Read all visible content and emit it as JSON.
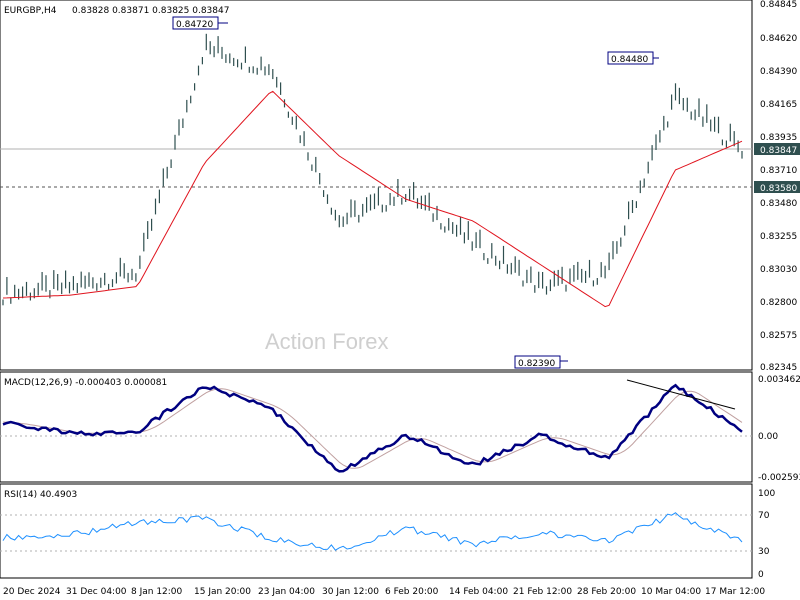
{
  "header": {
    "symbol": "EURGBP,H4",
    "ohlc": "0.83828 0.83871 0.83825 0.83847"
  },
  "watermark": "Action Forex",
  "price_axis": {
    "ticks": [
      "0.84845",
      "0.84620",
      "0.84390",
      "0.84165",
      "0.83935",
      "0.83710",
      "0.83480",
      "0.83255",
      "0.83030",
      "0.82800",
      "0.82575",
      "0.82345"
    ],
    "current_label": "0.83847",
    "hline_label": "0.83580"
  },
  "annotations": {
    "high1": "0.84720",
    "high2": "0.84480",
    "low1": "0.82390"
  },
  "macd": {
    "header": "MACD(12,26,9) -0.000403 0.000081",
    "ticks": [
      "0.003462",
      "0.00",
      "-0.002593"
    ]
  },
  "rsi": {
    "header": "RSI(14) 40.4903",
    "ticks": [
      "100",
      "70",
      "30",
      "0"
    ]
  },
  "time_axis": {
    "labels": [
      "20 Dec 2024",
      "31 Dec 04:00",
      "8 Jan 12:00",
      "15 Jan 20:00",
      "23 Jan 04:00",
      "30 Jan 12:00",
      "6 Feb 20:00",
      "14 Feb 04:00",
      "21 Feb 12:00",
      "28 Feb 20:00",
      "10 Mar 04:00",
      "17 Mar 12:00"
    ]
  },
  "colors": {
    "bars": "#2f4f4f",
    "ma": "#e0141e",
    "macd_main": "#000080",
    "macd_signal": "#c0a0a0",
    "rsi": "#1e90ff",
    "grid": "#999999"
  },
  "chart_data": [
    {
      "type": "line",
      "title": "EURGBP,H4",
      "series": [
        {
          "name": "EURGBP,H4",
          "x": [
            "20 Dec 2024",
            "31 Dec 04:00",
            "8 Jan 12:00",
            "15 Jan 20:00",
            "23 Jan 04:00",
            "30 Jan 12:00",
            "6 Feb 20:00",
            "14 Feb 04:00",
            "21 Feb 12:00",
            "28 Feb 20:00",
            "10 Mar 04:00",
            "17 Mar 12:00"
          ],
          "values": [
            0.8285,
            0.829,
            0.83,
            0.8455,
            0.844,
            0.8335,
            0.8355,
            0.832,
            0.829,
            0.83,
            0.842,
            0.8385
          ]
        },
        {
          "x": [
            "20 Dec 2024",
            "31 Dec 04:00",
            "8 Jan 12:00",
            "15 Jan 20:00",
            "23 Jan 04:00",
            "30 Jan 12:00",
            "6 Feb 20:00",
            "14 Feb 04:00",
            "21 Feb 12:00",
            "28 Feb 20:00",
            "10 Mar 04:00",
            "17 Mar 12:00"
          ],
          "values": [
            0.8282,
            0.8284,
            0.829,
            0.8375,
            0.8425,
            0.838,
            0.835,
            0.8335,
            0.8305,
            0.8275,
            0.837,
            0.839
          ]
        }
      ],
      "xlabel": "",
      "ylabel": "",
      "ylim": [
        0.82345,
        0.84845
      ]
    },
    {
      "type": "line",
      "series": [
        {
          "name": "MACD(12,26,9)",
          "x": [
            "20 Dec 2024",
            "31 Dec 04:00",
            "8 Jan 12:00",
            "15 Jan 20:00",
            "23 Jan 04:00",
            "30 Jan 12:00",
            "6 Feb 20:00",
            "14 Feb 04:00",
            "21 Feb 12:00",
            "28 Feb 20:00",
            "10 Mar 04:00",
            "17 Mar 12:00"
          ],
          "values": [
            0.0008,
            0.0001,
            0.0002,
            0.003,
            0.0016,
            -0.0023,
            0.0,
            -0.0018,
            0.0,
            -0.0014,
            0.003,
            0.0003
          ]
        }
      ],
      "ylim": [
        -0.002593,
        0.003462
      ]
    },
    {
      "type": "line",
      "series": [
        {
          "name": "RSI(14)",
          "x": [
            "20 Dec 2024",
            "31 Dec 04:00",
            "8 Jan 12:00",
            "15 Jan 20:00",
            "23 Jan 04:00",
            "30 Jan 12:00",
            "6 Feb 20:00",
            "14 Feb 04:00",
            "21 Feb 12:00",
            "28 Feb 20:00",
            "10 Mar 04:00",
            "17 Mar 12:00"
          ],
          "values": [
            44,
            47,
            62,
            67,
            42,
            30,
            55,
            35,
            50,
            40,
            72,
            40.49
          ]
        }
      ],
      "ylim": [
        0,
        100
      ]
    }
  ]
}
